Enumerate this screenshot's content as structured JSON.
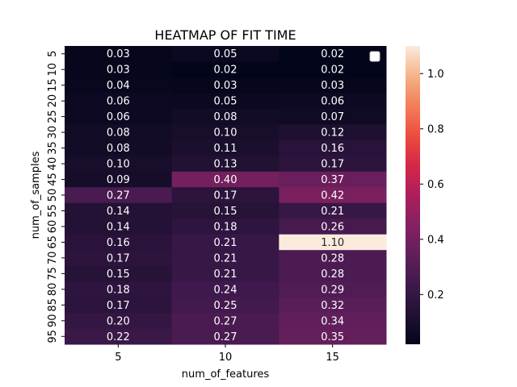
{
  "chart_data": {
    "type": "heatmap",
    "title": "HEATMAP OF FIT TIME",
    "xlabel": "num_of_features",
    "ylabel": "num_of_samples",
    "x_categories": [
      "5",
      "10",
      "15"
    ],
    "y_categories": [
      "5",
      "10",
      "15",
      "20",
      "25",
      "30",
      "35",
      "40",
      "45",
      "50",
      "55",
      "60",
      "65",
      "70",
      "75",
      "80",
      "85",
      "90",
      "95"
    ],
    "values": [
      [
        0.03,
        0.05,
        0.02
      ],
      [
        0.03,
        0.02,
        0.02
      ],
      [
        0.04,
        0.03,
        0.03
      ],
      [
        0.06,
        0.05,
        0.06
      ],
      [
        0.06,
        0.08,
        0.07
      ],
      [
        0.08,
        0.1,
        0.12
      ],
      [
        0.08,
        0.11,
        0.16
      ],
      [
        0.1,
        0.13,
        0.17
      ],
      [
        0.09,
        0.4,
        0.37
      ],
      [
        0.27,
        0.17,
        0.42
      ],
      [
        0.14,
        0.15,
        0.21
      ],
      [
        0.14,
        0.18,
        0.26
      ],
      [
        0.16,
        0.21,
        1.1
      ],
      [
        0.17,
        0.21,
        0.28
      ],
      [
        0.15,
        0.21,
        0.28
      ],
      [
        0.18,
        0.24,
        0.29
      ],
      [
        0.17,
        0.25,
        0.32
      ],
      [
        0.2,
        0.27,
        0.34
      ],
      [
        0.22,
        0.27,
        0.35
      ]
    ],
    "annotation_format": "0.00",
    "colorbar": {
      "min": 0.02,
      "max": 1.1,
      "ticks": [
        0.2,
        0.4,
        0.6,
        0.8,
        1.0
      ],
      "tick_labels": [
        "0.2",
        "0.4",
        "0.6",
        "0.8",
        "1.0"
      ],
      "colormap": "rocket"
    },
    "legend": {
      "placement": "top-right",
      "entries": []
    }
  }
}
